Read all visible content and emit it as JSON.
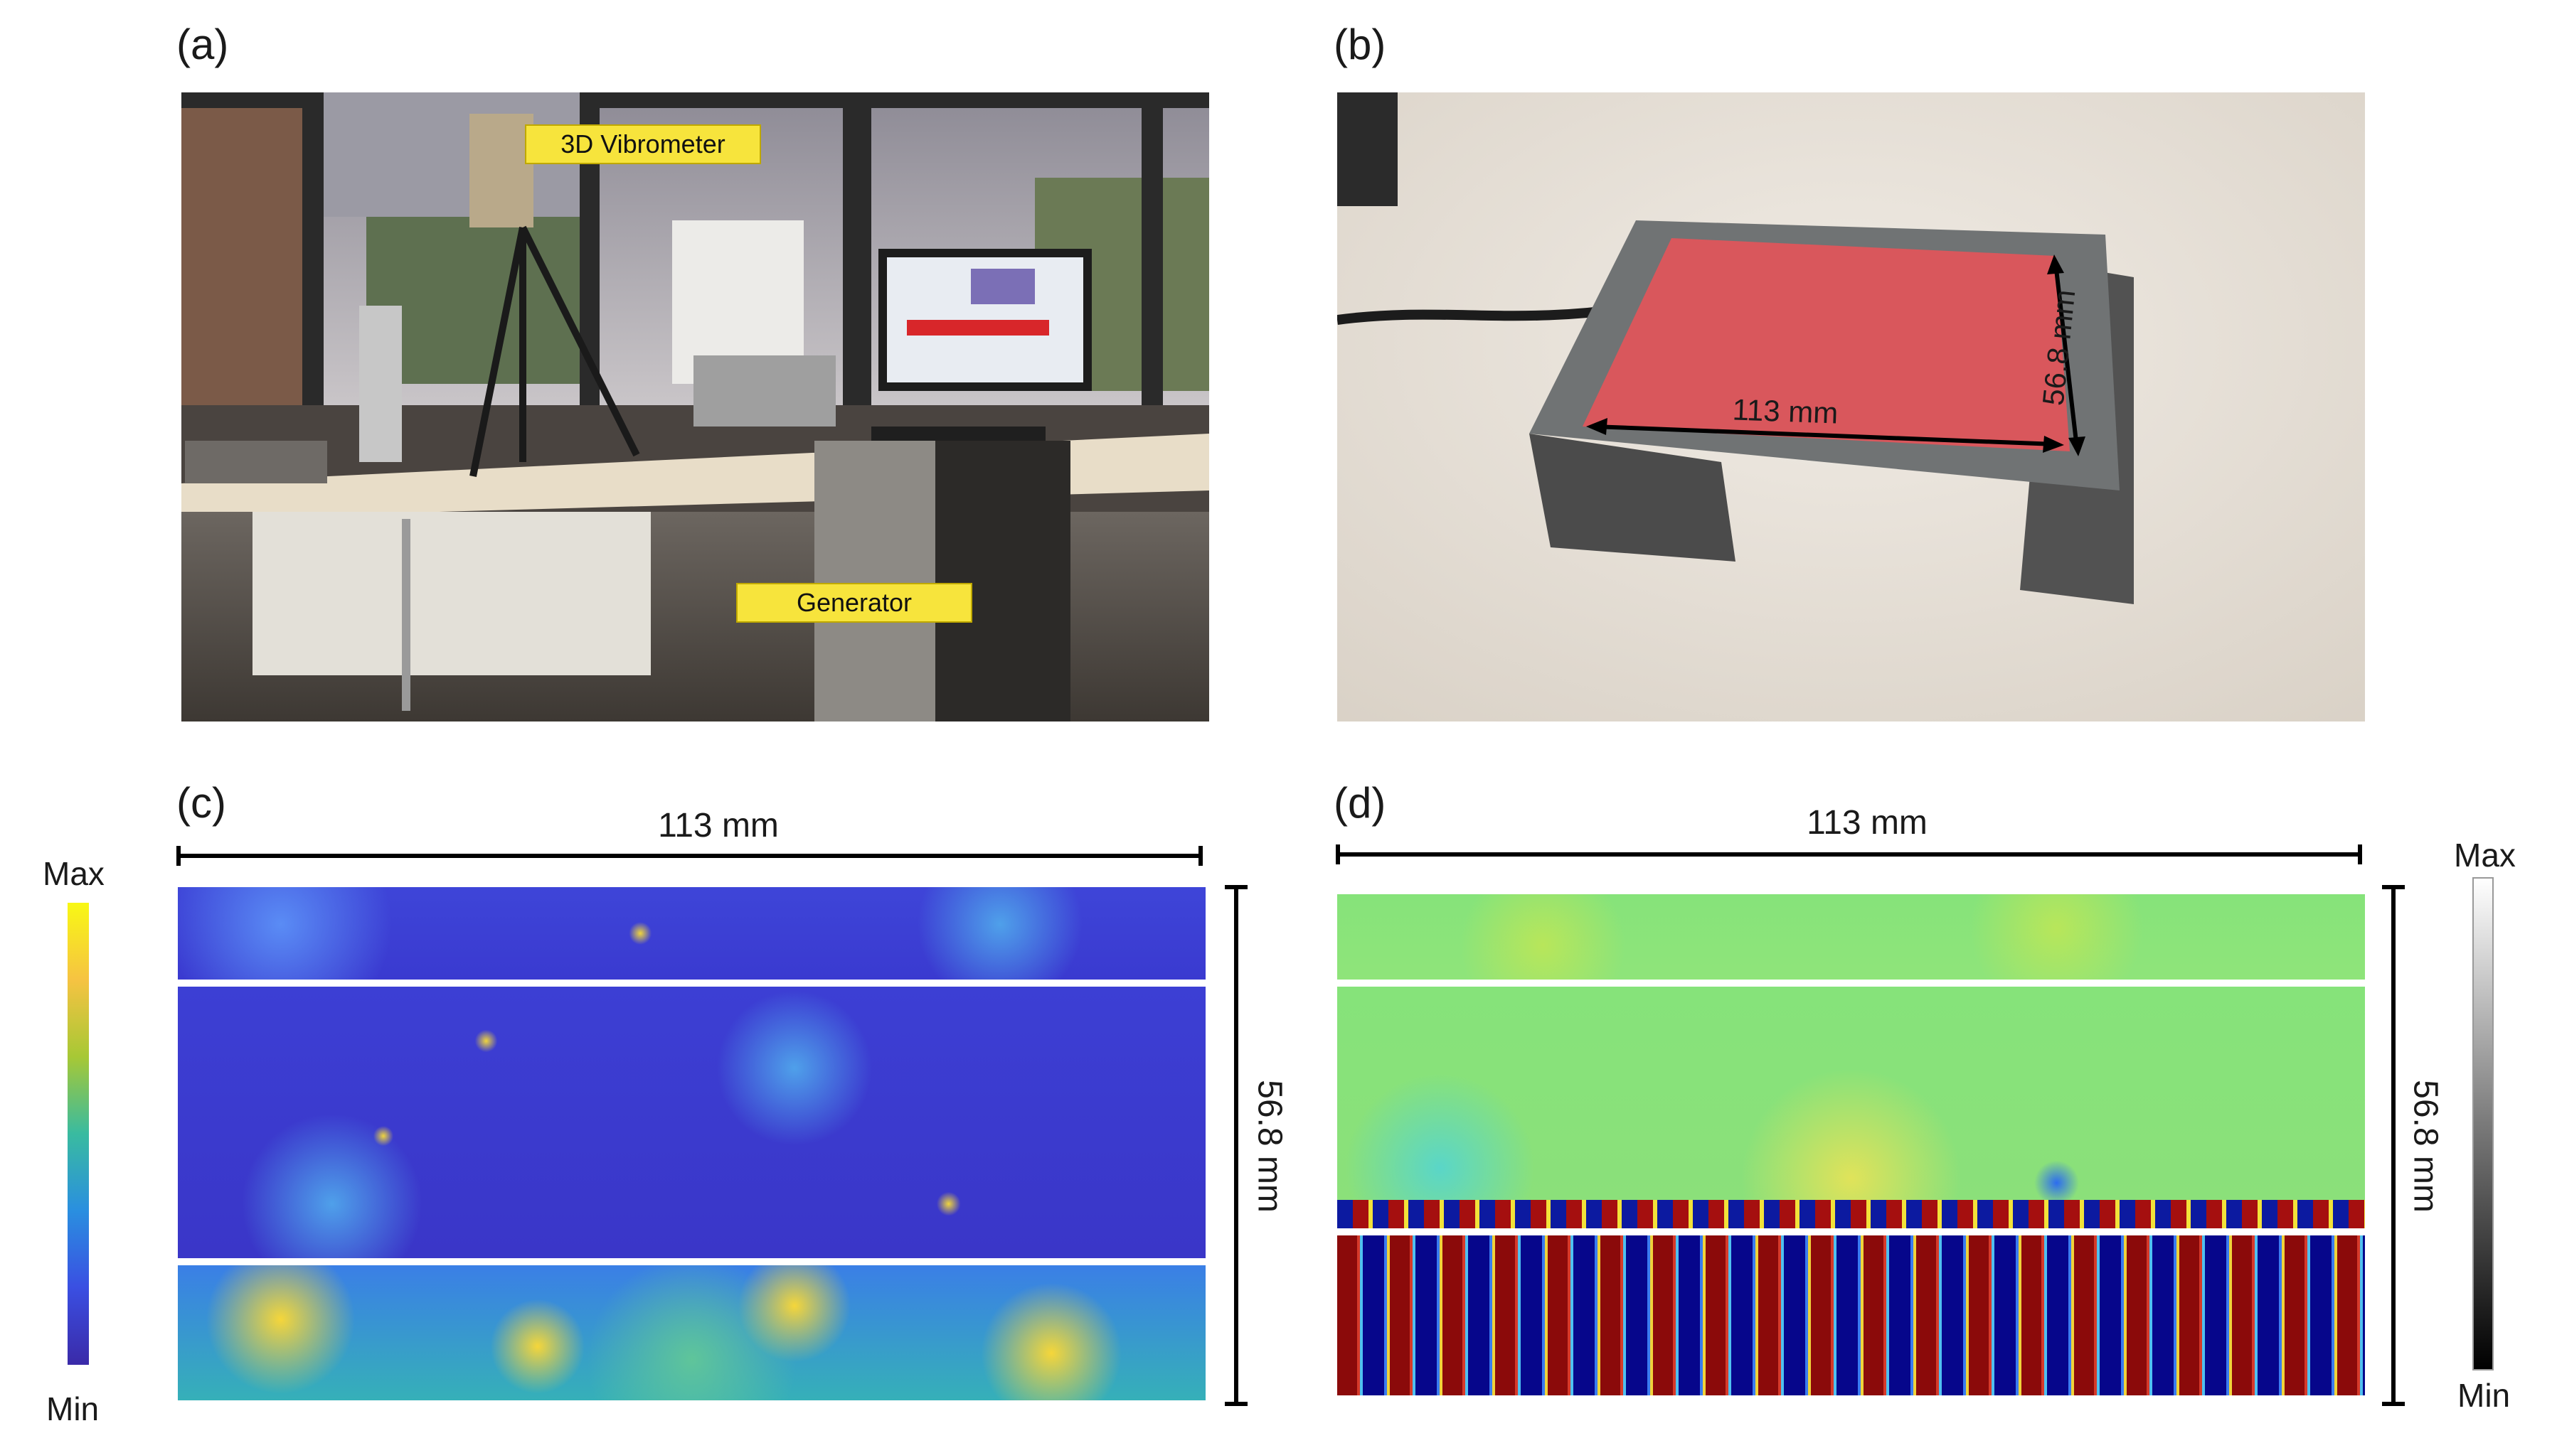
{
  "panels": {
    "a": {
      "label": "(a)",
      "annotations": {
        "vibrometer": "3D Vibrometer",
        "generator": "Generator"
      }
    },
    "b": {
      "label": "(b)",
      "dims": {
        "width": "113 mm",
        "height": "56.8 mm"
      }
    },
    "c": {
      "label": "(c)",
      "width_label": "113 mm",
      "height_label": "56.8 mm",
      "colorbar": {
        "max": "Max",
        "min": "Min",
        "colormap": "parula"
      }
    },
    "d": {
      "label": "(d)",
      "width_label": "113 mm",
      "height_label": "56.8 mm",
      "colorbar": {
        "max": "Max",
        "min": "Min",
        "colormap": "gray"
      }
    }
  },
  "colors": {
    "plate_red": "#d9575c",
    "annotation_yellow": "#f7e43c",
    "parula_low": "#3f3fd0",
    "parula_high": "#f5e23a",
    "jet_mid": "#86e37a",
    "jet_red": "#8b0000",
    "jet_blue": "#00008b"
  }
}
